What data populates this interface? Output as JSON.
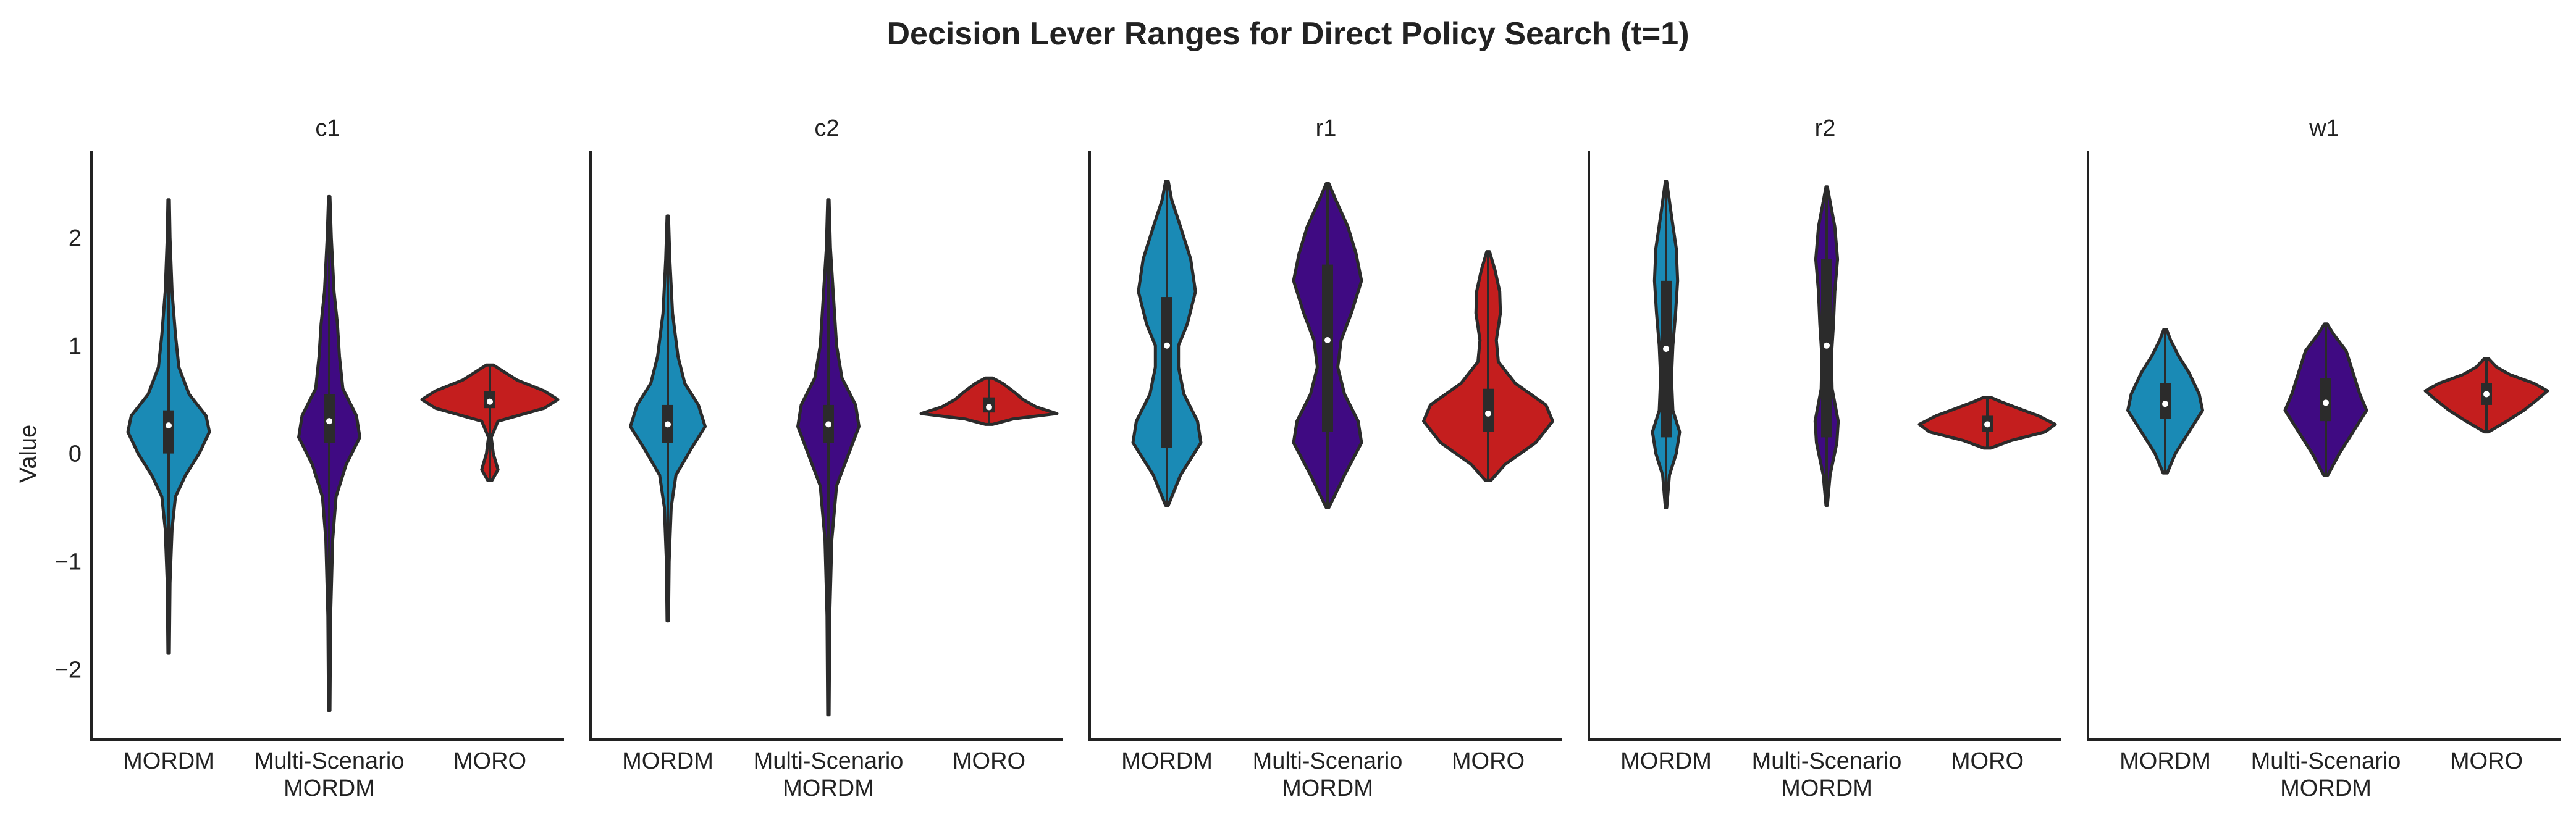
{
  "title": "Decision Lever Ranges for Direct Policy Search (t=1)",
  "ylabel": "Value",
  "colors": {
    "MORDM": "#1a8ab5",
    "Multi-Scenario MORDM": "#3f0a82",
    "MORO": "#c41e1e",
    "outline": "#2b2b2b",
    "box": "#2b2b2b",
    "median": "#ffffff"
  },
  "chart_data": {
    "type": "violin",
    "ylim": [
      -2.65,
      2.8
    ],
    "yticks": [
      -2,
      -1,
      0,
      1,
      2
    ],
    "ytick_labels": [
      "−2",
      "−1",
      "0",
      "1",
      "2"
    ],
    "categories": [
      "MORDM",
      "Multi-Scenario MORDM",
      "MORO"
    ],
    "category_labels": [
      [
        "MORDM"
      ],
      [
        "Multi-Scenario",
        "MORDM"
      ],
      [
        "MORO"
      ]
    ],
    "panels": [
      {
        "name": "c1",
        "violins": [
          {
            "category": "MORDM",
            "min": -1.85,
            "max": 2.35,
            "q1": 0.0,
            "median": 0.26,
            "q3": 0.4,
            "profile": [
              [
                -1.85,
                0.01
              ],
              [
                -1.2,
                0.02
              ],
              [
                -0.7,
                0.05
              ],
              [
                -0.4,
                0.1
              ],
              [
                -0.2,
                0.25
              ],
              [
                0.0,
                0.45
              ],
              [
                0.2,
                0.6
              ],
              [
                0.35,
                0.55
              ],
              [
                0.55,
                0.3
              ],
              [
                0.8,
                0.15
              ],
              [
                1.1,
                0.1
              ],
              [
                1.5,
                0.05
              ],
              [
                2.0,
                0.02
              ],
              [
                2.35,
                0.01
              ]
            ]
          },
          {
            "category": "Multi-Scenario MORDM",
            "min": -2.38,
            "max": 2.38,
            "q1": 0.1,
            "median": 0.3,
            "q3": 0.55,
            "profile": [
              [
                -2.38,
                0.01
              ],
              [
                -1.5,
                0.02
              ],
              [
                -0.8,
                0.05
              ],
              [
                -0.4,
                0.1
              ],
              [
                -0.1,
                0.25
              ],
              [
                0.15,
                0.45
              ],
              [
                0.35,
                0.4
              ],
              [
                0.6,
                0.2
              ],
              [
                0.9,
                0.15
              ],
              [
                1.2,
                0.12
              ],
              [
                1.5,
                0.07
              ],
              [
                2.0,
                0.03
              ],
              [
                2.38,
                0.01
              ]
            ]
          },
          {
            "category": "MORO",
            "min": -0.25,
            "max": 0.82,
            "q1": 0.42,
            "median": 0.48,
            "q3": 0.58,
            "profile": [
              [
                -0.25,
                0.03
              ],
              [
                -0.15,
                0.12
              ],
              [
                0.0,
                0.05
              ],
              [
                0.15,
                0.02
              ],
              [
                0.3,
                0.12
              ],
              [
                0.42,
                0.8
              ],
              [
                0.5,
                1.0
              ],
              [
                0.58,
                0.8
              ],
              [
                0.68,
                0.4
              ],
              [
                0.78,
                0.15
              ],
              [
                0.82,
                0.05
              ]
            ]
          }
        ]
      },
      {
        "name": "c2",
        "violins": [
          {
            "category": "MORDM",
            "min": -1.55,
            "max": 2.2,
            "q1": 0.1,
            "median": 0.27,
            "q3": 0.45,
            "profile": [
              [
                -1.55,
                0.01
              ],
              [
                -1.0,
                0.02
              ],
              [
                -0.5,
                0.05
              ],
              [
                -0.2,
                0.12
              ],
              [
                0.05,
                0.35
              ],
              [
                0.25,
                0.55
              ],
              [
                0.45,
                0.45
              ],
              [
                0.65,
                0.25
              ],
              [
                0.9,
                0.15
              ],
              [
                1.3,
                0.07
              ],
              [
                1.8,
                0.03
              ],
              [
                2.2,
                0.01
              ]
            ]
          },
          {
            "category": "Multi-Scenario MORDM",
            "min": -2.42,
            "max": 2.35,
            "q1": 0.1,
            "median": 0.27,
            "q3": 0.45,
            "profile": [
              [
                -2.42,
                0.01
              ],
              [
                -1.5,
                0.02
              ],
              [
                -0.8,
                0.05
              ],
              [
                -0.3,
                0.12
              ],
              [
                0.0,
                0.3
              ],
              [
                0.25,
                0.45
              ],
              [
                0.45,
                0.4
              ],
              [
                0.7,
                0.2
              ],
              [
                1.0,
                0.12
              ],
              [
                1.4,
                0.08
              ],
              [
                1.9,
                0.03
              ],
              [
                2.35,
                0.01
              ]
            ]
          },
          {
            "category": "MORO",
            "min": 0.27,
            "max": 0.7,
            "q1": 0.38,
            "median": 0.43,
            "q3": 0.52,
            "profile": [
              [
                0.27,
                0.05
              ],
              [
                0.32,
                0.35
              ],
              [
                0.37,
                1.0
              ],
              [
                0.43,
                0.7
              ],
              [
                0.5,
                0.5
              ],
              [
                0.58,
                0.35
              ],
              [
                0.65,
                0.2
              ],
              [
                0.7,
                0.05
              ]
            ]
          }
        ]
      },
      {
        "name": "r1",
        "violins": [
          {
            "category": "MORDM",
            "min": -0.48,
            "max": 2.52,
            "q1": 0.05,
            "median": 1.0,
            "q3": 1.45,
            "profile": [
              [
                -0.48,
                0.02
              ],
              [
                -0.2,
                0.2
              ],
              [
                0.1,
                0.5
              ],
              [
                0.3,
                0.45
              ],
              [
                0.55,
                0.25
              ],
              [
                0.8,
                0.17
              ],
              [
                1.0,
                0.17
              ],
              [
                1.2,
                0.3
              ],
              [
                1.5,
                0.42
              ],
              [
                1.8,
                0.35
              ],
              [
                2.1,
                0.2
              ],
              [
                2.35,
                0.07
              ],
              [
                2.52,
                0.02
              ]
            ]
          },
          {
            "category": "Multi-Scenario MORDM",
            "min": -0.5,
            "max": 2.5,
            "q1": 0.2,
            "median": 1.05,
            "q3": 1.75,
            "profile": [
              [
                -0.5,
                0.02
              ],
              [
                -0.2,
                0.25
              ],
              [
                0.1,
                0.5
              ],
              [
                0.3,
                0.45
              ],
              [
                0.55,
                0.25
              ],
              [
                0.8,
                0.15
              ],
              [
                1.05,
                0.2
              ],
              [
                1.3,
                0.35
              ],
              [
                1.6,
                0.5
              ],
              [
                1.85,
                0.42
              ],
              [
                2.1,
                0.3
              ],
              [
                2.35,
                0.12
              ],
              [
                2.5,
                0.02
              ]
            ]
          },
          {
            "category": "MORO",
            "min": -0.25,
            "max": 1.87,
            "q1": 0.2,
            "median": 0.37,
            "q3": 0.6,
            "profile": [
              [
                -0.25,
                0.04
              ],
              [
                -0.1,
                0.25
              ],
              [
                0.1,
                0.7
              ],
              [
                0.3,
                0.95
              ],
              [
                0.45,
                0.85
              ],
              [
                0.65,
                0.4
              ],
              [
                0.85,
                0.15
              ],
              [
                1.05,
                0.12
              ],
              [
                1.3,
                0.18
              ],
              [
                1.5,
                0.17
              ],
              [
                1.7,
                0.1
              ],
              [
                1.87,
                0.02
              ]
            ]
          }
        ]
      },
      {
        "name": "r2",
        "violins": [
          {
            "category": "MORDM",
            "min": -0.5,
            "max": 2.52,
            "q1": 0.15,
            "median": 0.97,
            "q3": 1.6,
            "profile": [
              [
                -0.5,
                0.01
              ],
              [
                -0.2,
                0.05
              ],
              [
                0.0,
                0.15
              ],
              [
                0.2,
                0.2
              ],
              [
                0.4,
                0.1
              ],
              [
                0.7,
                0.08
              ],
              [
                1.0,
                0.1
              ],
              [
                1.3,
                0.14
              ],
              [
                1.6,
                0.17
              ],
              [
                1.9,
                0.15
              ],
              [
                2.2,
                0.08
              ],
              [
                2.52,
                0.01
              ]
            ]
          },
          {
            "category": "Multi-Scenario MORDM",
            "min": -0.48,
            "max": 2.47,
            "q1": 0.15,
            "median": 1.0,
            "q3": 1.8,
            "profile": [
              [
                -0.48,
                0.01
              ],
              [
                -0.2,
                0.05
              ],
              [
                0.1,
                0.15
              ],
              [
                0.3,
                0.17
              ],
              [
                0.6,
                0.08
              ],
              [
                0.9,
                0.07
              ],
              [
                1.2,
                0.1
              ],
              [
                1.5,
                0.12
              ],
              [
                1.8,
                0.16
              ],
              [
                2.1,
                0.12
              ],
              [
                2.3,
                0.06
              ],
              [
                2.47,
                0.01
              ]
            ]
          },
          {
            "category": "MORO",
            "min": 0.05,
            "max": 0.52,
            "q1": 0.2,
            "median": 0.27,
            "q3": 0.35,
            "profile": [
              [
                0.05,
                0.05
              ],
              [
                0.12,
                0.35
              ],
              [
                0.2,
                0.85
              ],
              [
                0.27,
                1.0
              ],
              [
                0.35,
                0.75
              ],
              [
                0.42,
                0.45
              ],
              [
                0.48,
                0.2
              ],
              [
                0.52,
                0.05
              ]
            ]
          }
        ]
      },
      {
        "name": "w1",
        "violins": [
          {
            "category": "MORDM",
            "min": -0.18,
            "max": 1.15,
            "q1": 0.32,
            "median": 0.46,
            "q3": 0.65,
            "profile": [
              [
                -0.18,
                0.03
              ],
              [
                0.0,
                0.15
              ],
              [
                0.2,
                0.35
              ],
              [
                0.4,
                0.55
              ],
              [
                0.55,
                0.5
              ],
              [
                0.75,
                0.35
              ],
              [
                0.9,
                0.2
              ],
              [
                1.05,
                0.08
              ],
              [
                1.15,
                0.02
              ]
            ]
          },
          {
            "category": "Multi-Scenario MORDM",
            "min": -0.2,
            "max": 1.2,
            "q1": 0.3,
            "median": 0.47,
            "q3": 0.7,
            "profile": [
              [
                -0.2,
                0.03
              ],
              [
                0.0,
                0.2
              ],
              [
                0.2,
                0.4
              ],
              [
                0.4,
                0.6
              ],
              [
                0.55,
                0.5
              ],
              [
                0.75,
                0.4
              ],
              [
                0.95,
                0.3
              ],
              [
                1.1,
                0.12
              ],
              [
                1.2,
                0.02
              ]
            ]
          },
          {
            "category": "MORO",
            "min": 0.2,
            "max": 0.88,
            "q1": 0.45,
            "median": 0.55,
            "q3": 0.65,
            "profile": [
              [
                0.2,
                0.03
              ],
              [
                0.3,
                0.3
              ],
              [
                0.4,
                0.55
              ],
              [
                0.5,
                0.75
              ],
              [
                0.58,
                0.9
              ],
              [
                0.65,
                0.7
              ],
              [
                0.73,
                0.35
              ],
              [
                0.8,
                0.15
              ],
              [
                0.88,
                0.03
              ]
            ]
          }
        ]
      }
    ]
  }
}
